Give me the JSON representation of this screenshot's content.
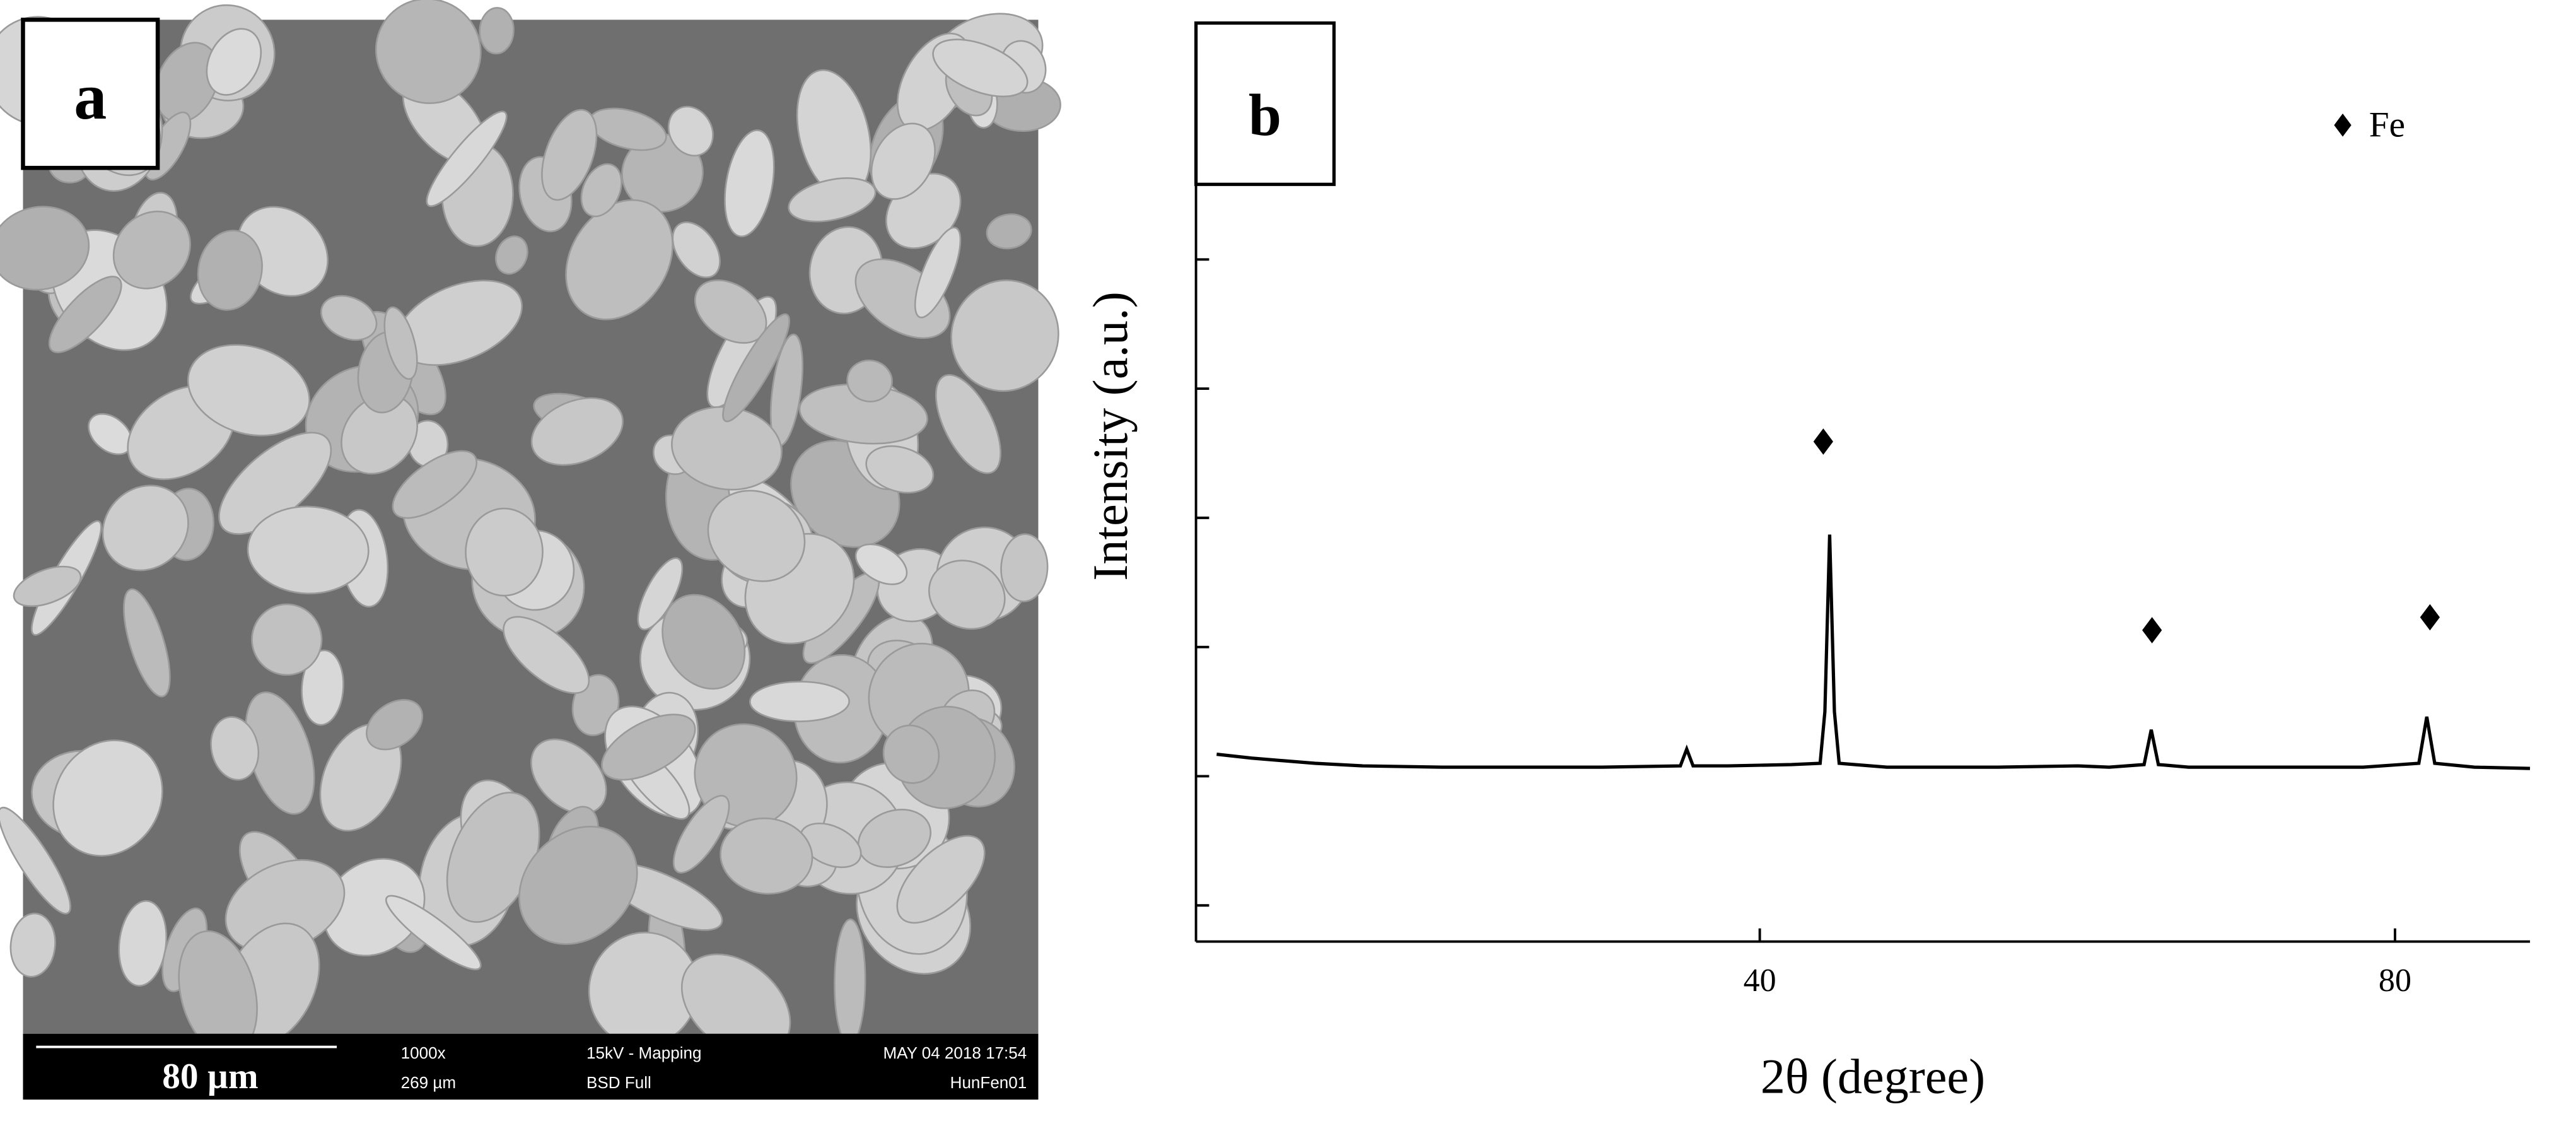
{
  "sem_image": {
    "panel_label": "a",
    "scale_bar": "80 µm",
    "magnification": "1000x",
    "field_width": "269 µm",
    "voltage": "15kV - Mapping",
    "detector": "BSD Full",
    "date": "MAY 04 2018 17:54",
    "sample": "HunFen01"
  },
  "chart_data": {
    "type": "line",
    "panel_label": "b",
    "x_label": "2θ (degree)",
    "y_label": "Intensity (a.u.)",
    "color": "#000000",
    "x": [
      5.8,
      8,
      10,
      12,
      15,
      20,
      25,
      30,
      35,
      35.4,
      35.8,
      38,
      42,
      43.8,
      44.1,
      44.4,
      44.7,
      45.0,
      48,
      55,
      60,
      62,
      64.2,
      64.65,
      65.1,
      67,
      72,
      78,
      81.5,
      82.0,
      82.5,
      85,
      88.5
    ],
    "values": [
      2.17,
      2.14,
      2.12,
      2.1,
      2.08,
      2.07,
      2.07,
      2.07,
      2.08,
      2.21,
      2.08,
      2.08,
      2.09,
      2.1,
      2.5,
      3.87,
      2.5,
      2.1,
      2.07,
      2.07,
      2.08,
      2.07,
      2.09,
      2.36,
      2.09,
      2.07,
      2.07,
      2.07,
      2.1,
      2.46,
      2.1,
      2.07,
      2.06
    ],
    "series": [
      {
        "name": "Fe",
        "color": "#000000",
        "x": [
          44.0,
          64.7,
          82.2
        ],
        "values": [
          4.59,
          3.13,
          3.23
        ]
      }
    ],
    "xlim": [
      4.5,
      88.5
    ],
    "xticks": [
      40,
      80
    ],
    "ylim": [
      0.72,
      7.83
    ],
    "yticks": [
      1,
      2,
      3,
      4,
      5,
      6
    ],
    "legend": "top-right"
  }
}
